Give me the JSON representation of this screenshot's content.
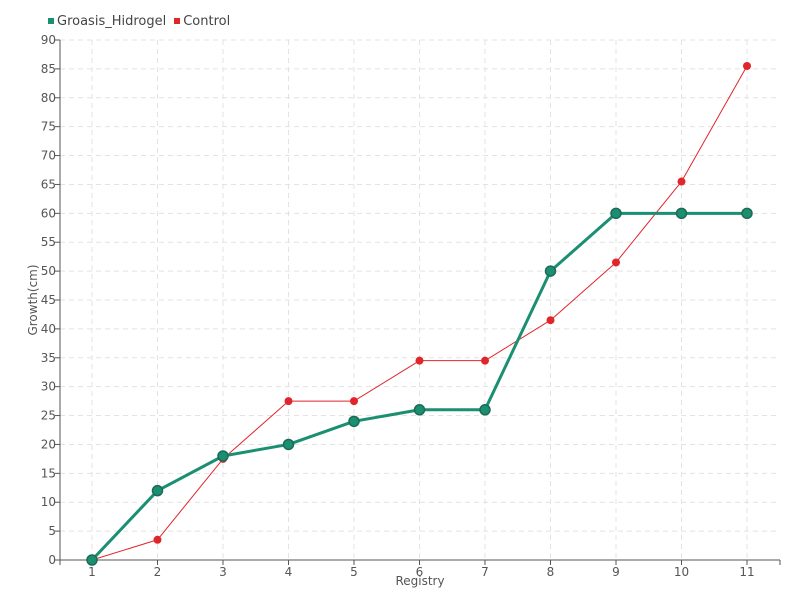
{
  "chart_data": {
    "type": "line",
    "title": "",
    "xlabel": "Registry",
    "ylabel": "Growth(cm)",
    "categories": [
      "1",
      "2",
      "3",
      "4",
      "5",
      "6",
      "7",
      "8",
      "9",
      "10",
      "11"
    ],
    "ylim": [
      0,
      90
    ],
    "ytick_step": 5,
    "grid": true,
    "legend_position": "top-left",
    "series": [
      {
        "name": "Groasis_Hidrogel",
        "color": "#1a8f72",
        "values": [
          0,
          12,
          18,
          20,
          24,
          26,
          26,
          50,
          60,
          60,
          60
        ]
      },
      {
        "name": "Control",
        "color": "#e0262b",
        "values": [
          0,
          3.5,
          17.5,
          27.5,
          27.5,
          34.5,
          34.5,
          41.5,
          51.5,
          65.5,
          85.5
        ]
      }
    ]
  }
}
